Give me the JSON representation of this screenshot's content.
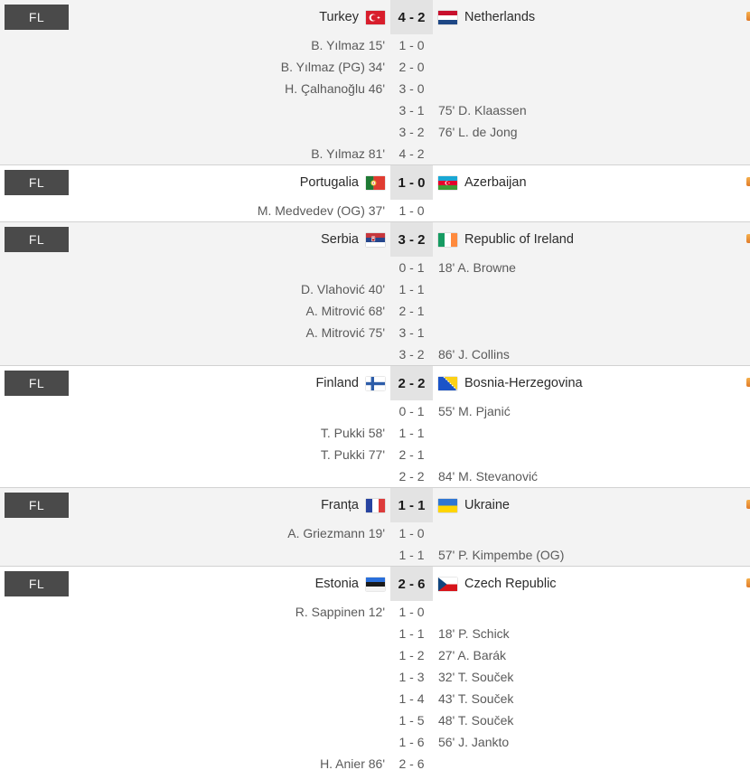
{
  "list_name": "football-results",
  "colors": {
    "badge_bg": "#4a4a4a",
    "badge_text": "#f2f2f2",
    "alt_row_bg": "#f3f3f3",
    "score_box_bg": "#e3e3e3",
    "divider": "#d2d2d2",
    "favorite_accent": "#e8923a"
  },
  "matches": [
    {
      "status": "FL",
      "home": {
        "name": "Turkey",
        "flag": "turkey"
      },
      "away": {
        "name": "Netherlands",
        "flag": "netherlands"
      },
      "score": "4 - 2",
      "events": [
        {
          "side": "home",
          "player": "B. Yılmaz",
          "minute": "15'",
          "score": "1 - 0"
        },
        {
          "side": "home",
          "player": "B. Yılmaz (PG)",
          "minute": "34'",
          "score": "2 - 0"
        },
        {
          "side": "home",
          "player": "H. Çalhanoğlu",
          "minute": "46'",
          "score": "3 - 0"
        },
        {
          "side": "away",
          "player": "D. Klaassen",
          "minute": "75'",
          "score": "3 - 1"
        },
        {
          "side": "away",
          "player": "L. de Jong",
          "minute": "76'",
          "score": "3 - 2"
        },
        {
          "side": "home",
          "player": "B. Yılmaz",
          "minute": "81'",
          "score": "4 - 2"
        }
      ]
    },
    {
      "status": "FL",
      "home": {
        "name": "Portugalia",
        "flag": "portugal"
      },
      "away": {
        "name": "Azerbaijan",
        "flag": "azerbaijan"
      },
      "score": "1 - 0",
      "events": [
        {
          "side": "home",
          "player": "M. Medvedev (OG)",
          "minute": "37'",
          "score": "1 - 0"
        }
      ]
    },
    {
      "status": "FL",
      "home": {
        "name": "Serbia",
        "flag": "serbia"
      },
      "away": {
        "name": "Republic of Ireland",
        "flag": "ireland"
      },
      "score": "3 - 2",
      "events": [
        {
          "side": "away",
          "player": "A. Browne",
          "minute": "18'",
          "score": "0 - 1"
        },
        {
          "side": "home",
          "player": "D. Vlahović",
          "minute": "40'",
          "score": "1 - 1"
        },
        {
          "side": "home",
          "player": "A. Mitrović",
          "minute": "68'",
          "score": "2 - 1"
        },
        {
          "side": "home",
          "player": "A. Mitrović",
          "minute": "75'",
          "score": "3 - 1"
        },
        {
          "side": "away",
          "player": "J. Collins",
          "minute": "86'",
          "score": "3 - 2"
        }
      ]
    },
    {
      "status": "FL",
      "home": {
        "name": "Finland",
        "flag": "finland"
      },
      "away": {
        "name": "Bosnia-Herzegovina",
        "flag": "bosnia"
      },
      "score": "2 - 2",
      "events": [
        {
          "side": "away",
          "player": "M. Pjanić",
          "minute": "55'",
          "score": "0 - 1"
        },
        {
          "side": "home",
          "player": "T. Pukki",
          "minute": "58'",
          "score": "1 - 1"
        },
        {
          "side": "home",
          "player": "T. Pukki",
          "minute": "77'",
          "score": "2 - 1"
        },
        {
          "side": "away",
          "player": "M. Stevanović",
          "minute": "84'",
          "score": "2 - 2"
        }
      ]
    },
    {
      "status": "FL",
      "home": {
        "name": "Franța",
        "flag": "france"
      },
      "away": {
        "name": "Ukraine",
        "flag": "ukraine"
      },
      "score": "1 - 1",
      "events": [
        {
          "side": "home",
          "player": "A. Griezmann",
          "minute": "19'",
          "score": "1 - 0"
        },
        {
          "side": "away",
          "player": "P. Kimpembe (OG)",
          "minute": "57'",
          "score": "1 - 1"
        }
      ]
    },
    {
      "status": "FL",
      "home": {
        "name": "Estonia",
        "flag": "estonia"
      },
      "away": {
        "name": "Czech Republic",
        "flag": "czech"
      },
      "score": "2 - 6",
      "events": [
        {
          "side": "home",
          "player": "R. Sappinen",
          "minute": "12'",
          "score": "1 - 0"
        },
        {
          "side": "away",
          "player": "P. Schick",
          "minute": "18'",
          "score": "1 - 1"
        },
        {
          "side": "away",
          "player": "A. Barák",
          "minute": "27'",
          "score": "1 - 2"
        },
        {
          "side": "away",
          "player": "T. Souček",
          "minute": "32'",
          "score": "1 - 3"
        },
        {
          "side": "away",
          "player": "T. Souček",
          "minute": "43'",
          "score": "1 - 4"
        },
        {
          "side": "away",
          "player": "T. Souček",
          "minute": "48'",
          "score": "1 - 5"
        },
        {
          "side": "away",
          "player": "J. Jankto",
          "minute": "56'",
          "score": "1 - 6"
        },
        {
          "side": "home",
          "player": "H. Anier",
          "minute": "86'",
          "score": "2 - 6"
        }
      ]
    }
  ]
}
